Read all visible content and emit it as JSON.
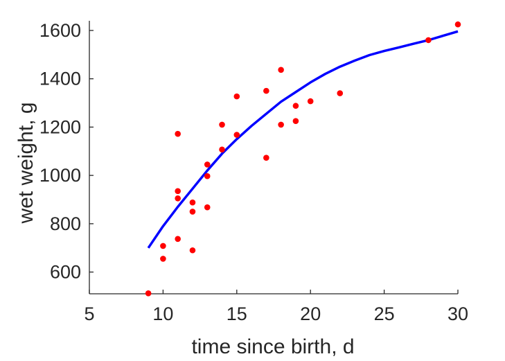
{
  "chart_data": {
    "type": "scatter",
    "title": "",
    "xlabel": "time since birth, d",
    "ylabel": "wet weight, g",
    "xlim": [
      5,
      30
    ],
    "ylim": [
      510,
      1640
    ],
    "xticks": [
      5,
      10,
      15,
      20,
      25,
      30
    ],
    "yticks": [
      600,
      800,
      1000,
      1200,
      1400,
      1600
    ],
    "grid": false,
    "legend": "none",
    "colors": {
      "points": "#ff0000",
      "line": "#0000ff",
      "axes": "#262626"
    },
    "series": [
      {
        "kind": "points",
        "color": "#ff0000",
        "points": [
          [
            9,
            512
          ],
          [
            10,
            655
          ],
          [
            10,
            708
          ],
          [
            11,
            737
          ],
          [
            11,
            1172
          ],
          [
            11,
            905
          ],
          [
            11,
            935
          ],
          [
            12,
            690
          ],
          [
            12,
            850
          ],
          [
            12,
            888
          ],
          [
            13,
            868
          ],
          [
            13,
            997
          ],
          [
            13,
            1045
          ],
          [
            14,
            1107
          ],
          [
            14,
            1210
          ],
          [
            15,
            1168
          ],
          [
            15,
            1327
          ],
          [
            17,
            1073
          ],
          [
            17,
            1350
          ],
          [
            18,
            1437
          ],
          [
            18,
            1210
          ],
          [
            19,
            1225
          ],
          [
            19,
            1288
          ],
          [
            20,
            1307
          ],
          [
            22,
            1340
          ],
          [
            28,
            1560
          ],
          [
            30,
            1625
          ]
        ]
      },
      {
        "kind": "line",
        "color": "#0000ff",
        "points": [
          [
            9,
            700
          ],
          [
            10,
            790
          ],
          [
            11,
            870
          ],
          [
            12,
            945
          ],
          [
            13,
            1020
          ],
          [
            14,
            1090
          ],
          [
            15,
            1150
          ],
          [
            16,
            1205
          ],
          [
            17,
            1255
          ],
          [
            18,
            1305
          ],
          [
            19,
            1345
          ],
          [
            20,
            1385
          ],
          [
            21,
            1420
          ],
          [
            22,
            1450
          ],
          [
            23,
            1475
          ],
          [
            24,
            1498
          ],
          [
            25,
            1515
          ],
          [
            26,
            1530
          ],
          [
            27,
            1545
          ],
          [
            28,
            1560
          ],
          [
            29,
            1578
          ],
          [
            30,
            1596
          ]
        ]
      }
    ]
  }
}
